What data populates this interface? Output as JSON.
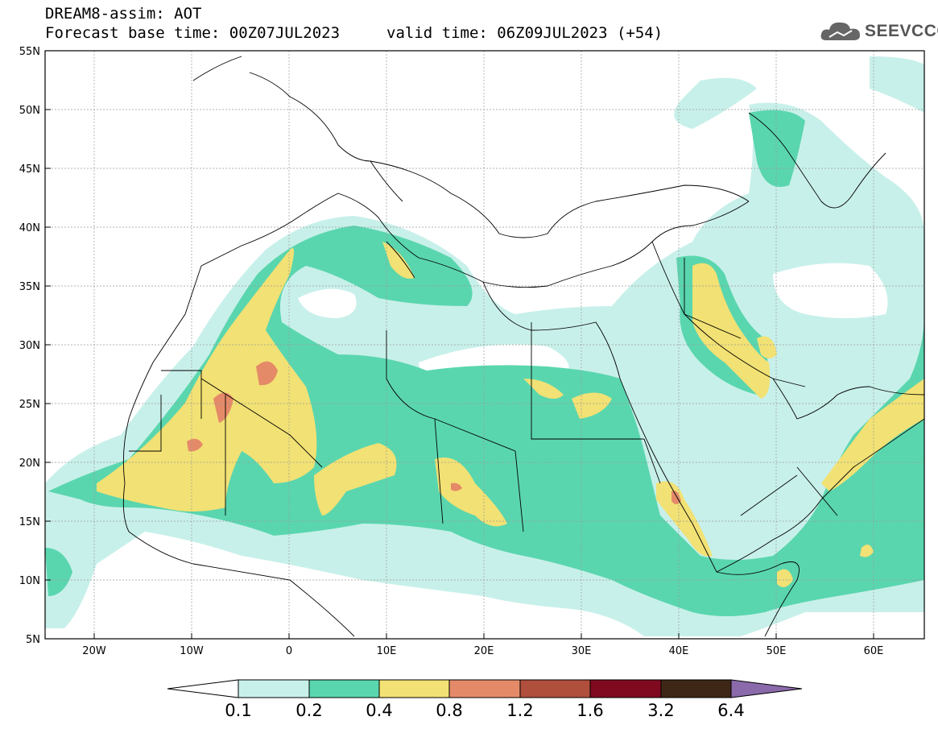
{
  "header": {
    "model": "DREAM8-assim: AOT",
    "base_time": "Forecast base time: 00Z07JUL2023",
    "valid_time": "valid time: 06Z09JUL2023 (+54)"
  },
  "logo": {
    "text": "SEEVCCC",
    "icon": "cloud-icon"
  },
  "map": {
    "lat_labels": [
      "55N",
      "50N",
      "45N",
      "40N",
      "35N",
      "30N",
      "25N",
      "20N",
      "15N",
      "10N",
      "5N"
    ],
    "lon_labels": [
      "20W",
      "10W",
      "0",
      "10E",
      "20E",
      "30E",
      "40E",
      "50E",
      "60E"
    ],
    "extent": {
      "lon_min": -25,
      "lon_max": 65,
      "lat_min": 5,
      "lat_max": 55
    }
  },
  "colorbar": {
    "labels": [
      "0.1",
      "0.2",
      "0.4",
      "0.8",
      "1.2",
      "1.6",
      "3.2",
      "6.4"
    ],
    "colors": [
      "#ffffff",
      "#c8f0ea",
      "#5ad6ae",
      "#f2e174",
      "#e58a68",
      "#b04f3c",
      "#7f0a20",
      "#3e2716",
      "#8a6aaa"
    ]
  },
  "palette": {
    "grid": "#999999",
    "frame": "#000000",
    "border": "#000000"
  }
}
